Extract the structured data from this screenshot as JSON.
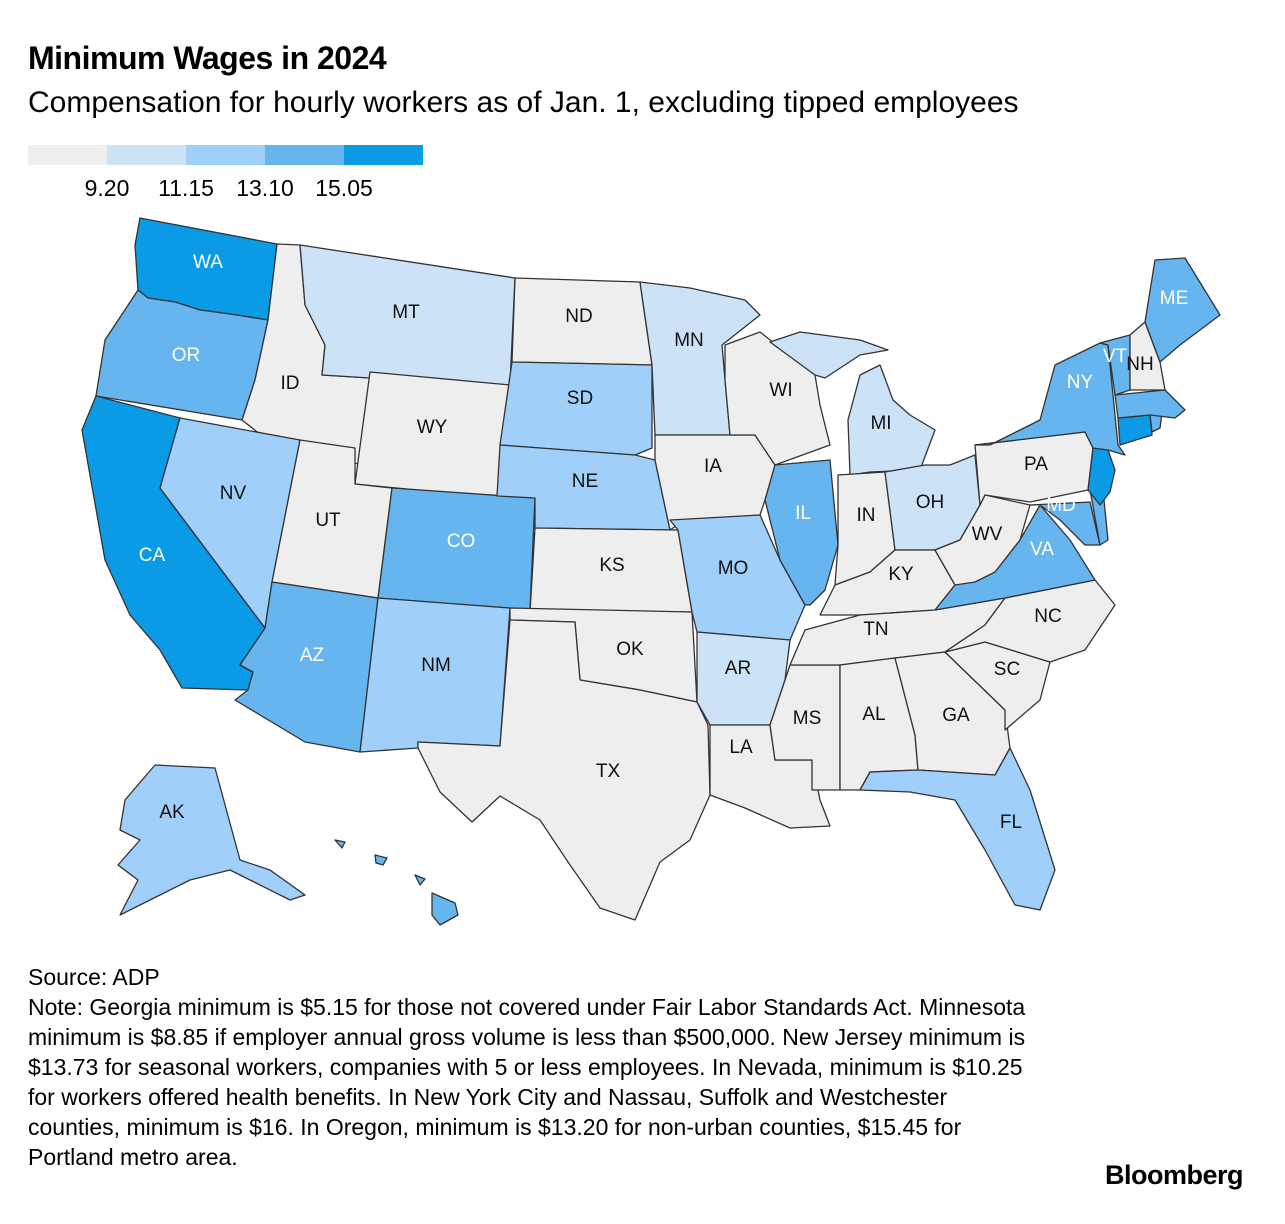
{
  "title": "Minimum Wages in 2024",
  "subtitle": "Compensation for hourly workers as of Jan. 1, excluding tipped employees",
  "legend": {
    "colors": [
      "#eeeeee",
      "#cce2f6",
      "#a0d0fa",
      "#66b5ee",
      "#0a9ae6"
    ],
    "thresholds": [
      "9.20",
      "11.15",
      "13.10",
      "15.05"
    ]
  },
  "states": [
    {
      "abbr": "WA",
      "bin": 4
    },
    {
      "abbr": "OR",
      "bin": 3
    },
    {
      "abbr": "CA",
      "bin": 4
    },
    {
      "abbr": "ID",
      "bin": 0
    },
    {
      "abbr": "NV",
      "bin": 2
    },
    {
      "abbr": "MT",
      "bin": 1
    },
    {
      "abbr": "WY",
      "bin": 0
    },
    {
      "abbr": "UT",
      "bin": 0
    },
    {
      "abbr": "AZ",
      "bin": 3
    },
    {
      "abbr": "CO",
      "bin": 3
    },
    {
      "abbr": "NM",
      "bin": 2
    },
    {
      "abbr": "ND",
      "bin": 0
    },
    {
      "abbr": "SD",
      "bin": 2
    },
    {
      "abbr": "NE",
      "bin": 2
    },
    {
      "abbr": "KS",
      "bin": 0
    },
    {
      "abbr": "OK",
      "bin": 0
    },
    {
      "abbr": "TX",
      "bin": 0
    },
    {
      "abbr": "MN",
      "bin": 1
    },
    {
      "abbr": "IA",
      "bin": 0
    },
    {
      "abbr": "MO",
      "bin": 2
    },
    {
      "abbr": "AR",
      "bin": 1
    },
    {
      "abbr": "LA",
      "bin": 0
    },
    {
      "abbr": "WI",
      "bin": 0
    },
    {
      "abbr": "IL",
      "bin": 3
    },
    {
      "abbr": "MS",
      "bin": 0
    },
    {
      "abbr": "MI",
      "bin": 1
    },
    {
      "abbr": "IN",
      "bin": 0
    },
    {
      "abbr": "OH",
      "bin": 1
    },
    {
      "abbr": "KY",
      "bin": 0
    },
    {
      "abbr": "TN",
      "bin": 0
    },
    {
      "abbr": "AL",
      "bin": 0
    },
    {
      "abbr": "GA",
      "bin": 0
    },
    {
      "abbr": "FL",
      "bin": 2
    },
    {
      "abbr": "SC",
      "bin": 0
    },
    {
      "abbr": "NC",
      "bin": 0
    },
    {
      "abbr": "VA",
      "bin": 3
    },
    {
      "abbr": "WV",
      "bin": 0
    },
    {
      "abbr": "MD",
      "bin": 3
    },
    {
      "abbr": "DE",
      "bin": 3
    },
    {
      "abbr": "PA",
      "bin": 0
    },
    {
      "abbr": "NJ",
      "bin": 4
    },
    {
      "abbr": "NY",
      "bin": 3
    },
    {
      "abbr": "CT",
      "bin": 4
    },
    {
      "abbr": "RI",
      "bin": 3
    },
    {
      "abbr": "MA",
      "bin": 3
    },
    {
      "abbr": "VT",
      "bin": 3
    },
    {
      "abbr": "NH",
      "bin": 0
    },
    {
      "abbr": "ME",
      "bin": 3
    },
    {
      "abbr": "AK",
      "bin": 2
    },
    {
      "abbr": "HI",
      "bin": 3
    }
  ],
  "source": "Source: ADP",
  "note": "Note: Georgia minimum is $5.15 for those not covered under Fair Labor Standards Act. Minnesota minimum is $8.85 if employer annual gross volume is less than $500,000. New Jersey minimum is $13.73 for seasonal workers, companies with 5 or less employees. In Nevada, minimum is $10.25 for workers offered health benefits. In New York City and Nassau, Suffolk and Westchester counties, minimum is $16. In Oregon, minimum is $13.20 for non-urban counties, $15.45 for Portland metro area.",
  "logo": "Bloomberg"
}
